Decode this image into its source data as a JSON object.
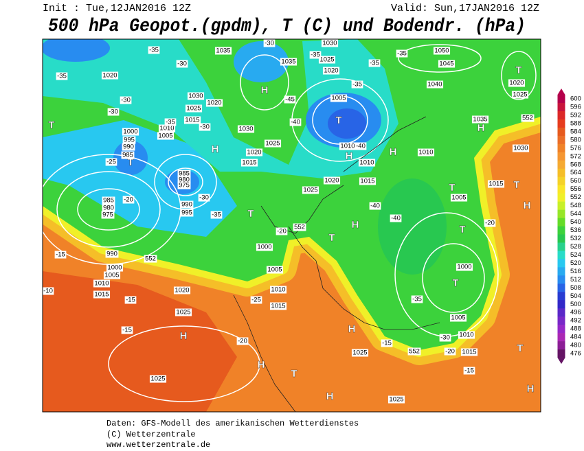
{
  "header": {
    "init": "Init : Tue,12JAN2016 12Z",
    "valid": "Valid: Sun,17JAN2016 12Z",
    "title": "500 hPa Geopot.(gpdm), T (C) und Bodendr. (hPa)"
  },
  "colorbar": {
    "labels": [
      "600",
      "596",
      "592",
      "588",
      "584",
      "580",
      "576",
      "572",
      "568",
      "564",
      "560",
      "556",
      "552",
      "548",
      "544",
      "540",
      "536",
      "532",
      "528",
      "524",
      "520",
      "516",
      "512",
      "508",
      "504",
      "500",
      "496",
      "492",
      "488",
      "484",
      "480",
      "476"
    ],
    "colors": [
      "#b4004b",
      "#c8143c",
      "#dc2828",
      "#e63c1e",
      "#e65a1e",
      "#eb6e28",
      "#f08228",
      "#f59632",
      "#f5aa32",
      "#f5be28",
      "#f5d228",
      "#fae628",
      "#f0f028",
      "#c8f028",
      "#96e628",
      "#64dc28",
      "#3cd23c",
      "#28c850",
      "#28d28c",
      "#28dcc8",
      "#28c8f0",
      "#28aaf0",
      "#288cf0",
      "#2864e6",
      "#283cd2",
      "#3228c8",
      "#5a28c8",
      "#7828c8",
      "#9628c8",
      "#aa28b4",
      "#8c1e96",
      "#641464"
    ]
  },
  "map": {
    "markers": [
      "H",
      "H",
      "H",
      "H",
      "H",
      "H",
      "H",
      "H",
      "H",
      "H",
      "H",
      "H",
      "T",
      "T",
      "T",
      "T",
      "T",
      "T",
      "T",
      "T",
      "T",
      "T",
      "T",
      "T",
      "T"
    ],
    "labels": [
      "1035",
      "1035",
      "1020",
      "1030",
      "1020",
      "1025",
      "1015",
      "1010",
      "1005",
      "1030",
      "1025",
      "1020",
      "1015",
      "1000",
      "995",
      "990",
      "985",
      "985",
      "980",
      "975",
      "990",
      "995",
      "985",
      "980",
      "975",
      "990",
      "1000",
      "1005",
      "1010",
      "1015",
      "1020",
      "1025",
      "1025",
      "1000",
      "1005",
      "1010",
      "1015",
      "1025",
      "1020",
      "1015",
      "1010",
      "1010",
      "1005",
      "1020",
      "1025",
      "1030",
      "1050",
      "1045",
      "1040",
      "1035",
      "1030",
      "1020",
      "1025",
      "1015",
      "1010",
      "1005",
      "1000",
      "1005",
      "1010",
      "1015",
      "1025",
      "1025",
      "-35",
      "-30",
      "-35",
      "-30",
      "-30",
      "-35",
      "-30",
      "-45",
      "-40",
      "-35",
      "-35",
      "-35",
      "-35",
      "-30",
      "-40",
      "-25",
      "-30",
      "-35",
      "-20",
      "-15",
      "-15",
      "-20",
      "-25",
      "-15",
      "-20",
      "-20",
      "-40",
      "-40",
      "-35",
      "-30",
      "-20",
      "-15",
      "-15",
      "-10",
      "552",
      "552",
      "552",
      "552"
    ]
  },
  "footer": {
    "lines": [
      "Daten: GFS-Modell des amerikanischen Wetterdienstes",
      "(C) Wetterzentrale",
      "www.wetterzentrale.de"
    ]
  }
}
